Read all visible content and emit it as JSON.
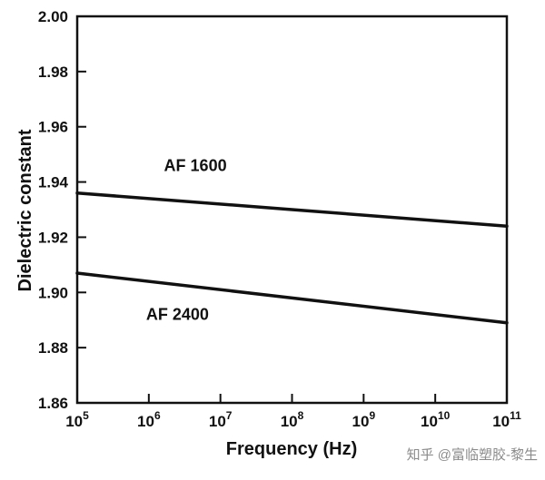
{
  "figure": {
    "background": "#ffffff",
    "ink": "#111111"
  },
  "chart_data": {
    "type": "line",
    "title": "",
    "xlabel": "Frequency (Hz)",
    "ylabel": "Dielectric constant",
    "x_scale": "log",
    "xlim_log": [
      5,
      11
    ],
    "ylim": [
      1.86,
      2.0
    ],
    "grid": false,
    "legend_position": "none",
    "x_tick_base": "10",
    "x_tick_exponents": [
      5,
      6,
      7,
      8,
      9,
      10,
      11
    ],
    "y_ticks": [
      1.86,
      1.88,
      1.9,
      1.92,
      1.94,
      1.96,
      1.98,
      2.0
    ],
    "series": [
      {
        "name": "AF 1600",
        "x_log": [
          5,
          8,
          11
        ],
        "y": [
          1.936,
          1.93,
          1.924
        ],
        "color": "#111111",
        "width": 3.5
      },
      {
        "name": "AF 2400",
        "x_log": [
          5,
          8,
          11
        ],
        "y": [
          1.907,
          1.898,
          1.889
        ],
        "color": "#111111",
        "width": 3.5
      }
    ],
    "annotations": [
      {
        "text": "AF 1600",
        "x_log": 6.65,
        "y": 1.944
      },
      {
        "text": "AF 2400",
        "x_log": 6.4,
        "y": 1.89
      }
    ]
  },
  "watermark": {
    "text": "知乎 @富临塑胶-黎生",
    "color": "#8b8b8b"
  }
}
